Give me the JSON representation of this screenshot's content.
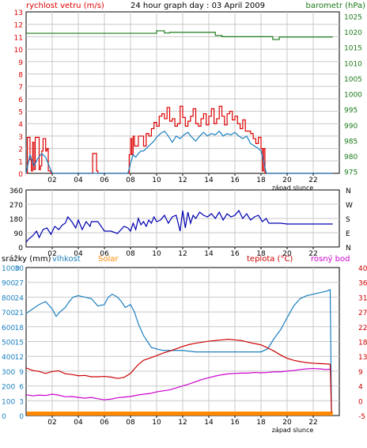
{
  "colors": {
    "wind": "#dd0000",
    "wind_avg": "#1a7fbf",
    "pressure": "#1a7a1a",
    "direction": "#0000b0",
    "humidity": "#1a7fbf",
    "temperature": "#cc0000",
    "dewpoint": "#cc00cc",
    "solar": "#ff8800",
    "grid": "#c8c8c8",
    "axis": "#000000"
  },
  "chart_data": [
    {
      "type": "line",
      "title": "24 hour graph day : 03 April 2009",
      "y_left_label": "rychlost vetru (m/s)",
      "y_right_label": "barometr (hPa)",
      "x_ticks": [
        "02",
        "04",
        "06",
        "08",
        "10",
        "12",
        "14",
        "16",
        "18",
        "20",
        "22"
      ],
      "x_note": "západ slunce",
      "y_left_ticks": [
        0,
        1,
        2,
        3,
        4,
        5,
        6,
        7,
        8,
        9,
        10,
        11,
        12,
        13
      ],
      "y_left_lim": [
        0,
        13
      ],
      "y_right_ticks": [
        975,
        980,
        985,
        990,
        995,
        1000,
        1005,
        1010,
        1015,
        1020,
        1025
      ],
      "y_right_lim": [
        974.4,
        1026.4
      ],
      "series": [
        {
          "key": "wind_gust",
          "x": [
            0,
            0.1,
            0.2,
            0.3,
            0.4,
            0.5,
            0.6,
            0.7,
            0.8,
            0.9,
            1.0,
            1.1,
            1.2,
            1.3,
            1.4,
            1.5,
            1.6,
            1.7,
            1.8,
            1.9,
            2.0,
            2.5,
            3.0,
            4.0,
            5.0,
            5.1,
            5.2,
            5.3,
            5.4,
            5.5,
            6.0,
            7.0,
            7.8,
            7.9,
            8.0,
            8.1,
            8.2,
            8.3,
            8.4,
            8.6,
            8.8,
            9.0,
            9.2,
            9.4,
            9.6,
            9.8,
            10.0,
            10.2,
            10.4,
            10.6,
            10.8,
            11.0,
            11.2,
            11.4,
            11.6,
            11.8,
            12.0,
            12.2,
            12.4,
            12.6,
            12.8,
            13.0,
            13.2,
            13.4,
            13.6,
            13.8,
            14.0,
            14.2,
            14.4,
            14.6,
            14.8,
            15.0,
            15.2,
            15.4,
            15.6,
            15.8,
            16.0,
            16.2,
            16.4,
            16.6,
            16.8,
            17.0,
            17.2,
            17.4,
            17.6,
            17.8,
            18.0,
            18.1,
            18.2,
            18.3,
            18.4,
            18.5,
            19.0,
            20.0,
            21.0,
            22.0,
            23.5
          ],
          "values": [
            0,
            2.9,
            2.9,
            1.1,
            0.2,
            2.5,
            0.3,
            2.9,
            2.9,
            2.9,
            0.3,
            0.6,
            1.8,
            2.8,
            2.8,
            1.8,
            2.0,
            0.2,
            0.2,
            0,
            0,
            0,
            0,
            0,
            0,
            1.6,
            1.6,
            1.6,
            0.2,
            0,
            0,
            0,
            0,
            1.5,
            2.8,
            1.5,
            3.0,
            2.2,
            2.2,
            3.0,
            3.0,
            2.2,
            3.2,
            3.0,
            3.6,
            4.1,
            3.8,
            4.6,
            4.8,
            4.4,
            5.3,
            4.2,
            4.4,
            3.8,
            4.0,
            5.4,
            4.5,
            3.8,
            4.2,
            4.6,
            5.2,
            4.0,
            3.8,
            4.4,
            4.8,
            3.9,
            4.6,
            5.2,
            4.0,
            4.4,
            5.4,
            4.6,
            3.9,
            4.8,
            5.0,
            4.3,
            4.6,
            4.0,
            3.6,
            4.3,
            3.4,
            3.4,
            3.2,
            2.8,
            2.4,
            2.9,
            2.0,
            0.2,
            2.0,
            0,
            0,
            0,
            0,
            0,
            0,
            0,
            0
          ]
        },
        {
          "key": "wind_avg",
          "x": [
            0,
            0.3,
            0.6,
            0.9,
            1.2,
            1.5,
            1.8,
            2.0,
            3.0,
            4.0,
            5.0,
            6.0,
            7.0,
            7.8,
            8.0,
            8.2,
            8.4,
            8.6,
            8.8,
            9.0,
            9.2,
            9.4,
            9.6,
            9.8,
            10.0,
            10.3,
            10.6,
            10.9,
            11.2,
            11.5,
            11.8,
            12.1,
            12.4,
            12.7,
            13.0,
            13.3,
            13.6,
            13.9,
            14.2,
            14.5,
            14.8,
            15.1,
            15.4,
            15.7,
            16.0,
            16.3,
            16.6,
            16.9,
            17.2,
            17.5,
            17.8,
            18.0,
            18.2,
            18.4,
            19.0,
            20.0,
            21.0,
            22.0,
            23.5
          ],
          "values": [
            0,
            1.5,
            0.6,
            1.2,
            1.6,
            1.3,
            0.5,
            0,
            0,
            0,
            0,
            0,
            0,
            0,
            0.8,
            1.5,
            1.3,
            1.6,
            1.8,
            1.8,
            2.0,
            2.2,
            2.4,
            2.6,
            2.9,
            3.2,
            3.4,
            3.0,
            2.5,
            3.0,
            2.8,
            3.1,
            3.3,
            2.9,
            2.6,
            3.0,
            3.3,
            3.0,
            3.2,
            3.1,
            3.4,
            3.0,
            3.2,
            3.1,
            3.3,
            3.0,
            2.8,
            3.0,
            2.4,
            2.2,
            2.0,
            1.8,
            1.0,
            0,
            0,
            0,
            0,
            0,
            0
          ]
        },
        {
          "key": "pressure",
          "x": [
            0,
            5,
            9.9,
            10,
            10.5,
            10.6,
            11,
            12,
            14,
            14.5,
            15,
            17,
            18.8,
            18.9,
            19.3,
            19.4,
            23.5
          ],
          "values": [
            1019.5,
            1019.5,
            1019.5,
            1020.3,
            1020.3,
            1019.6,
            1019.8,
            1019.8,
            1019.8,
            1018.8,
            1018.4,
            1018.4,
            1018.4,
            1017.5,
            1017.5,
            1018.3,
            1018.3
          ]
        }
      ]
    },
    {
      "type": "line",
      "y_right_dir_labels": [
        "N",
        "W",
        "S",
        "E",
        "N"
      ],
      "y_left_ticks": [
        0,
        90,
        180,
        270,
        360
      ],
      "y_lim": [
        0,
        360
      ],
      "x_ticks": [
        "02",
        "04",
        "06",
        "08",
        "10",
        "12",
        "14",
        "16",
        "18",
        "20",
        "22"
      ],
      "series": [
        {
          "key": "direction",
          "x": [
            0,
            0.2,
            0.5,
            0.8,
            1.0,
            1.3,
            1.6,
            1.9,
            2.2,
            2.5,
            2.8,
            3.0,
            3.2,
            3.5,
            3.8,
            4.0,
            4.3,
            4.6,
            4.9,
            5.0,
            5.5,
            6.0,
            6.5,
            7.0,
            7.5,
            7.8,
            8.0,
            8.2,
            8.4,
            8.6,
            8.8,
            9.0,
            9.2,
            9.4,
            9.6,
            9.8,
            10.0,
            10.3,
            10.6,
            10.9,
            11.2,
            11.5,
            11.8,
            12.0,
            12.2,
            12.4,
            12.6,
            12.8,
            13.0,
            13.3,
            13.6,
            13.9,
            14.2,
            14.5,
            14.8,
            15.1,
            15.4,
            15.7,
            16.0,
            16.3,
            16.6,
            16.9,
            17.2,
            17.5,
            17.8,
            18.1,
            18.4,
            18.6,
            19.0,
            19.5,
            20.0,
            21.0,
            22.0,
            23.5
          ],
          "values": [
            30,
            50,
            70,
            100,
            60,
            110,
            120,
            80,
            130,
            110,
            140,
            150,
            190,
            160,
            120,
            170,
            110,
            160,
            130,
            160,
            160,
            100,
            100,
            85,
            130,
            120,
            100,
            150,
            110,
            180,
            140,
            160,
            130,
            170,
            150,
            190,
            160,
            170,
            200,
            150,
            190,
            200,
            100,
            230,
            120,
            220,
            150,
            200,
            180,
            220,
            200,
            190,
            210,
            180,
            220,
            170,
            210,
            190,
            200,
            230,
            180,
            210,
            170,
            190,
            200,
            160,
            180,
            150,
            150,
            150,
            145,
            145,
            145,
            145
          ]
        }
      ]
    },
    {
      "type": "line",
      "legend_left": [
        "srážky (mm)",
        "vlhkost",
        "Solar"
      ],
      "legend_right": [
        "teplota (°C)",
        "rosný bod"
      ],
      "y_axis_srazky": [
        0,
        3,
        6,
        9,
        12,
        15,
        18,
        21,
        24,
        27,
        30
      ],
      "y_axis_vlhkost": [
        0,
        10,
        20,
        30,
        40,
        50,
        60,
        70,
        80,
        90,
        100
      ],
      "y_axis_solar": [
        0,
        100,
        200,
        300,
        400,
        500,
        600,
        700,
        800,
        900,
        1000
      ],
      "y_axis_teplota": [
        -5,
        0,
        4,
        9,
        13,
        18,
        22,
        27,
        31,
        36,
        40
      ],
      "y_axis_rosny": [
        -5,
        0,
        4,
        9,
        13,
        18,
        22,
        27,
        31,
        36,
        40
      ],
      "x_ticks": [
        "02",
        "04",
        "06",
        "08",
        "10",
        "12",
        "14",
        "16",
        "18",
        "20",
        "22"
      ],
      "x_note": "západ slunce",
      "series": [
        {
          "key": "humidity",
          "x": [
            0,
            0.5,
            1.0,
            1.5,
            2.0,
            2.3,
            2.6,
            3.0,
            3.3,
            3.6,
            4.0,
            4.5,
            5.0,
            5.5,
            6.0,
            6.3,
            6.6,
            7.0,
            7.3,
            7.6,
            8.0,
            8.3,
            8.6,
            9.0,
            9.3,
            9.6,
            10.0,
            10.5,
            11.0,
            12.0,
            13.0,
            14.0,
            15.0,
            16.0,
            17.0,
            18.0,
            18.5,
            19.0,
            19.5,
            20.0,
            20.5,
            21.0,
            21.5,
            22.0,
            22.5,
            23.0,
            23.3,
            23.4
          ],
          "values": [
            69,
            72,
            75,
            77,
            72,
            67,
            70,
            73,
            77,
            80,
            81,
            80,
            79,
            74,
            75,
            80,
            82,
            80,
            77,
            73,
            75,
            70,
            62,
            54,
            50,
            46,
            45,
            44,
            44,
            44,
            43,
            43,
            43,
            43,
            43,
            43,
            45,
            52,
            58,
            66,
            74,
            79,
            81,
            82,
            83,
            84,
            85,
            3
          ]
        },
        {
          "key": "temperature",
          "x": [
            0,
            0.5,
            1.0,
            1.5,
            2.0,
            2.5,
            3.0,
            3.5,
            4.0,
            4.5,
            5.0,
            5.5,
            6.0,
            6.5,
            7.0,
            7.5,
            8.0,
            8.3,
            8.6,
            9.0,
            9.5,
            10.0,
            10.5,
            11.0,
            11.5,
            12.0,
            12.5,
            13.0,
            13.5,
            14.0,
            14.5,
            15.0,
            15.5,
            16.0,
            16.5,
            17.0,
            17.5,
            18.0,
            18.5,
            19.0,
            19.5,
            20.0,
            20.5,
            21.0,
            21.5,
            22.0,
            22.5,
            23.0,
            23.3,
            23.4
          ],
          "values": [
            9.5,
            8.7,
            8.4,
            7.8,
            8.4,
            8.6,
            7.7,
            7.5,
            7.1,
            7.2,
            6.8,
            6.8,
            6.9,
            6.7,
            6.3,
            6.6,
            7.8,
            9.2,
            10.5,
            11.8,
            12.5,
            13.2,
            14.0,
            14.6,
            15.3,
            16.0,
            16.6,
            17.0,
            17.3,
            17.6,
            17.8,
            18.0,
            18.2,
            18.0,
            17.8,
            17.3,
            16.9,
            16.5,
            15.6,
            14.6,
            13.4,
            12.4,
            11.8,
            11.4,
            11.1,
            10.9,
            10.8,
            10.7,
            10.6,
            -4.0
          ]
        },
        {
          "key": "dewpoint",
          "x": [
            0,
            0.5,
            1.0,
            1.5,
            2.0,
            2.5,
            3.0,
            3.5,
            4.0,
            4.5,
            5.0,
            5.5,
            6.0,
            6.5,
            7.0,
            7.5,
            8.0,
            8.5,
            9.0,
            9.5,
            10.0,
            10.5,
            11.0,
            11.5,
            12.0,
            12.5,
            13.0,
            13.5,
            14.0,
            14.5,
            15.0,
            15.5,
            16.0,
            16.5,
            17.0,
            17.5,
            18.0,
            18.5,
            19.0,
            19.5,
            20.0,
            20.5,
            21.0,
            21.5,
            22.0,
            22.5,
            23.0,
            23.3
          ],
          "values": [
            1.3,
            1.0,
            1.2,
            1.1,
            1.5,
            1.2,
            0.7,
            0.8,
            0.5,
            0.3,
            0.5,
            0.1,
            -0.2,
            0.0,
            0.4,
            0.6,
            0.8,
            1.2,
            1.5,
            1.7,
            2.2,
            2.5,
            2.8,
            3.4,
            4.0,
            4.6,
            5.3,
            6.0,
            6.5,
            7.0,
            7.4,
            7.7,
            7.8,
            7.9,
            7.9,
            8.1,
            8.0,
            8.1,
            8.3,
            8.3,
            8.5,
            8.7,
            9.0,
            9.2,
            9.3,
            9.2,
            9.0,
            9.1
          ]
        },
        {
          "key": "solar",
          "x": [
            0,
            23.5
          ],
          "values": [
            5,
            5
          ]
        }
      ]
    }
  ]
}
